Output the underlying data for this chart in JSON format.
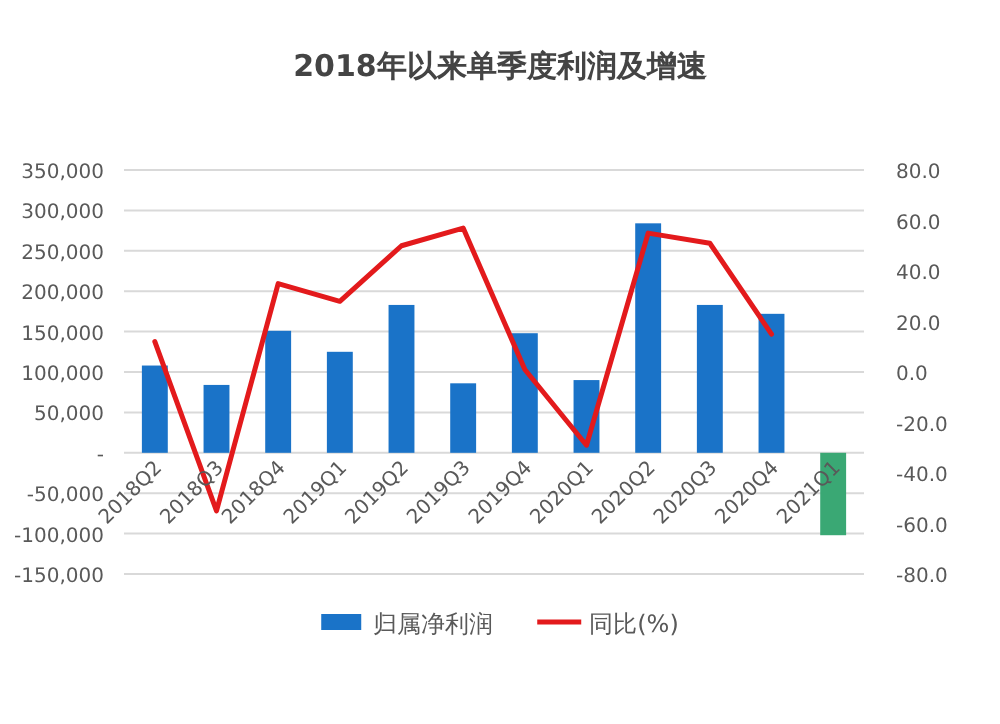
{
  "chart_data": {
    "type": "bar",
    "title": "2018年以来单季度利润及增速",
    "categories": [
      "2018Q2",
      "2018Q3",
      "2018Q4",
      "2019Q1",
      "2019Q2",
      "2019Q3",
      "2019Q4",
      "2020Q1",
      "2020Q2",
      "2020Q3",
      "2020Q4",
      "2021Q1"
    ],
    "series": [
      {
        "name": "归属净利润",
        "color": "#1a73c8",
        "colors": [
          "#1a73c8",
          "#1a73c8",
          "#1a73c8",
          "#1a73c8",
          "#1a73c8",
          "#1a73c8",
          "#1a73c8",
          "#1a73c8",
          "#1a73c8",
          "#1a73c8",
          "#1a73c8",
          "#3aa874"
        ],
        "values": [
          108000,
          84000,
          151000,
          125000,
          183000,
          86000,
          148000,
          90000,
          284000,
          183000,
          172000,
          -102000
        ]
      },
      {
        "name": "同比(%)",
        "type": "line",
        "axis": "y2",
        "color": "#e31a1c",
        "values": [
          12,
          -55,
          35,
          28,
          50,
          57,
          1,
          -29,
          55,
          51,
          15,
          null
        ]
      }
    ],
    "ylim": [
      -150000,
      350000
    ],
    "yticks": [
      {
        "value": -150000,
        "label": "-150,000"
      },
      {
        "value": -100000,
        "label": "-100,000"
      },
      {
        "value": -50000,
        "label": "-50,000"
      },
      {
        "value": 0,
        "label": "-"
      },
      {
        "value": 50000,
        "label": "50,000"
      },
      {
        "value": 100000,
        "label": "100,000"
      },
      {
        "value": 150000,
        "label": "150,000"
      },
      {
        "value": 200000,
        "label": "200,000"
      },
      {
        "value": 250000,
        "label": "250,000"
      },
      {
        "value": 300000,
        "label": "300,000"
      },
      {
        "value": 350000,
        "label": "350,000"
      }
    ],
    "y2lim": [
      -80,
      80
    ],
    "y2ticks": [
      {
        "value": -80,
        "label": "-80.0"
      },
      {
        "value": -60,
        "label": "-60.0"
      },
      {
        "value": -40,
        "label": "-40.0"
      },
      {
        "value": -20,
        "label": "-20.0"
      },
      {
        "value": 0,
        "label": "0.0"
      },
      {
        "value": 20,
        "label": "20.0"
      },
      {
        "value": 40,
        "label": "40.0"
      },
      {
        "value": 60,
        "label": "60.0"
      },
      {
        "value": 80,
        "label": "80.0"
      }
    ],
    "grid": "y",
    "legend": "bottom"
  }
}
